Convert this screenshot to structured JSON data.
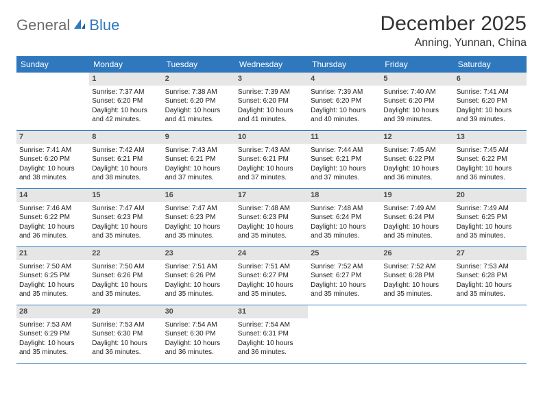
{
  "brand": {
    "name1": "General",
    "name2": "Blue"
  },
  "title": "December 2025",
  "location": "Anning, Yunnan, China",
  "weekdays": [
    "Sunday",
    "Monday",
    "Tuesday",
    "Wednesday",
    "Thursday",
    "Friday",
    "Saturday"
  ],
  "colors": {
    "header_bg": "#2f78bd",
    "header_text": "#ffffff",
    "daynum_bg": "#e6e6e6",
    "border": "#2f78bd",
    "logo_gray": "#6b6b6b",
    "logo_blue": "#2f78bd"
  },
  "weeks": [
    [
      null,
      {
        "n": "1",
        "sr": "Sunrise: 7:37 AM",
        "ss": "Sunset: 6:20 PM",
        "dl": "Daylight: 10 hours and 42 minutes."
      },
      {
        "n": "2",
        "sr": "Sunrise: 7:38 AM",
        "ss": "Sunset: 6:20 PM",
        "dl": "Daylight: 10 hours and 41 minutes."
      },
      {
        "n": "3",
        "sr": "Sunrise: 7:39 AM",
        "ss": "Sunset: 6:20 PM",
        "dl": "Daylight: 10 hours and 41 minutes."
      },
      {
        "n": "4",
        "sr": "Sunrise: 7:39 AM",
        "ss": "Sunset: 6:20 PM",
        "dl": "Daylight: 10 hours and 40 minutes."
      },
      {
        "n": "5",
        "sr": "Sunrise: 7:40 AM",
        "ss": "Sunset: 6:20 PM",
        "dl": "Daylight: 10 hours and 39 minutes."
      },
      {
        "n": "6",
        "sr": "Sunrise: 7:41 AM",
        "ss": "Sunset: 6:20 PM",
        "dl": "Daylight: 10 hours and 39 minutes."
      }
    ],
    [
      {
        "n": "7",
        "sr": "Sunrise: 7:41 AM",
        "ss": "Sunset: 6:20 PM",
        "dl": "Daylight: 10 hours and 38 minutes."
      },
      {
        "n": "8",
        "sr": "Sunrise: 7:42 AM",
        "ss": "Sunset: 6:21 PM",
        "dl": "Daylight: 10 hours and 38 minutes."
      },
      {
        "n": "9",
        "sr": "Sunrise: 7:43 AM",
        "ss": "Sunset: 6:21 PM",
        "dl": "Daylight: 10 hours and 37 minutes."
      },
      {
        "n": "10",
        "sr": "Sunrise: 7:43 AM",
        "ss": "Sunset: 6:21 PM",
        "dl": "Daylight: 10 hours and 37 minutes."
      },
      {
        "n": "11",
        "sr": "Sunrise: 7:44 AM",
        "ss": "Sunset: 6:21 PM",
        "dl": "Daylight: 10 hours and 37 minutes."
      },
      {
        "n": "12",
        "sr": "Sunrise: 7:45 AM",
        "ss": "Sunset: 6:22 PM",
        "dl": "Daylight: 10 hours and 36 minutes."
      },
      {
        "n": "13",
        "sr": "Sunrise: 7:45 AM",
        "ss": "Sunset: 6:22 PM",
        "dl": "Daylight: 10 hours and 36 minutes."
      }
    ],
    [
      {
        "n": "14",
        "sr": "Sunrise: 7:46 AM",
        "ss": "Sunset: 6:22 PM",
        "dl": "Daylight: 10 hours and 36 minutes."
      },
      {
        "n": "15",
        "sr": "Sunrise: 7:47 AM",
        "ss": "Sunset: 6:23 PM",
        "dl": "Daylight: 10 hours and 35 minutes."
      },
      {
        "n": "16",
        "sr": "Sunrise: 7:47 AM",
        "ss": "Sunset: 6:23 PM",
        "dl": "Daylight: 10 hours and 35 minutes."
      },
      {
        "n": "17",
        "sr": "Sunrise: 7:48 AM",
        "ss": "Sunset: 6:23 PM",
        "dl": "Daylight: 10 hours and 35 minutes."
      },
      {
        "n": "18",
        "sr": "Sunrise: 7:48 AM",
        "ss": "Sunset: 6:24 PM",
        "dl": "Daylight: 10 hours and 35 minutes."
      },
      {
        "n": "19",
        "sr": "Sunrise: 7:49 AM",
        "ss": "Sunset: 6:24 PM",
        "dl": "Daylight: 10 hours and 35 minutes."
      },
      {
        "n": "20",
        "sr": "Sunrise: 7:49 AM",
        "ss": "Sunset: 6:25 PM",
        "dl": "Daylight: 10 hours and 35 minutes."
      }
    ],
    [
      {
        "n": "21",
        "sr": "Sunrise: 7:50 AM",
        "ss": "Sunset: 6:25 PM",
        "dl": "Daylight: 10 hours and 35 minutes."
      },
      {
        "n": "22",
        "sr": "Sunrise: 7:50 AM",
        "ss": "Sunset: 6:26 PM",
        "dl": "Daylight: 10 hours and 35 minutes."
      },
      {
        "n": "23",
        "sr": "Sunrise: 7:51 AM",
        "ss": "Sunset: 6:26 PM",
        "dl": "Daylight: 10 hours and 35 minutes."
      },
      {
        "n": "24",
        "sr": "Sunrise: 7:51 AM",
        "ss": "Sunset: 6:27 PM",
        "dl": "Daylight: 10 hours and 35 minutes."
      },
      {
        "n": "25",
        "sr": "Sunrise: 7:52 AM",
        "ss": "Sunset: 6:27 PM",
        "dl": "Daylight: 10 hours and 35 minutes."
      },
      {
        "n": "26",
        "sr": "Sunrise: 7:52 AM",
        "ss": "Sunset: 6:28 PM",
        "dl": "Daylight: 10 hours and 35 minutes."
      },
      {
        "n": "27",
        "sr": "Sunrise: 7:53 AM",
        "ss": "Sunset: 6:28 PM",
        "dl": "Daylight: 10 hours and 35 minutes."
      }
    ],
    [
      {
        "n": "28",
        "sr": "Sunrise: 7:53 AM",
        "ss": "Sunset: 6:29 PM",
        "dl": "Daylight: 10 hours and 35 minutes."
      },
      {
        "n": "29",
        "sr": "Sunrise: 7:53 AM",
        "ss": "Sunset: 6:30 PM",
        "dl": "Daylight: 10 hours and 36 minutes."
      },
      {
        "n": "30",
        "sr": "Sunrise: 7:54 AM",
        "ss": "Sunset: 6:30 PM",
        "dl": "Daylight: 10 hours and 36 minutes."
      },
      {
        "n": "31",
        "sr": "Sunrise: 7:54 AM",
        "ss": "Sunset: 6:31 PM",
        "dl": "Daylight: 10 hours and 36 minutes."
      },
      null,
      null,
      null
    ]
  ]
}
